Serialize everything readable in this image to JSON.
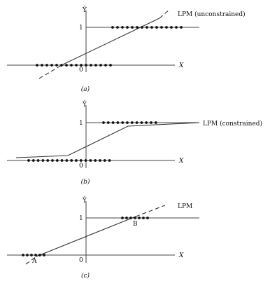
{
  "panels": [
    {
      "id": "a",
      "y_axis_label": "Ŷ",
      "tick_one": "1",
      "origin_label": "0",
      "x_axis_label": "X",
      "line_label": "LPM (unconstrained)",
      "caption": "(a)"
    },
    {
      "id": "b",
      "y_axis_label": "Ŷ",
      "tick_one": "1",
      "origin_label": "0",
      "x_axis_label": "X",
      "line_label": "LPM (constrained)",
      "caption": "(b)"
    },
    {
      "id": "c",
      "y_axis_label": "Ŷ",
      "tick_one": "1",
      "origin_label": "0",
      "x_axis_label": "X",
      "line_label": "LPM",
      "point_a_label": "A",
      "point_b_label": "B",
      "caption": "(c)"
    }
  ]
}
